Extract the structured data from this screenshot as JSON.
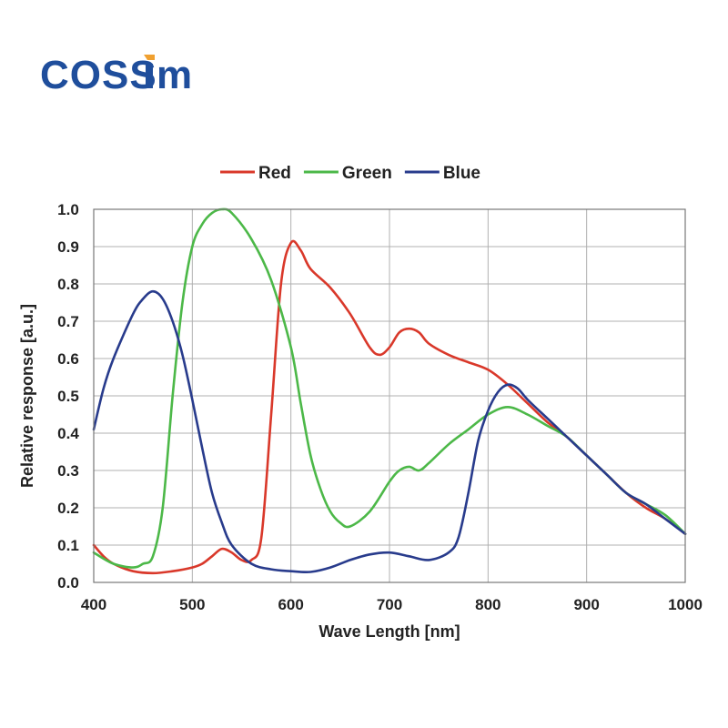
{
  "logo": {
    "text": "COSSiM",
    "color": "#1f4e9c",
    "accent": "#f0a030"
  },
  "chart_data": {
    "type": "line",
    "title": "",
    "xlabel": "Wave Length [nm]",
    "ylabel": "Relative response [a.u.]",
    "xlim": [
      400,
      1000
    ],
    "ylim": [
      0,
      1.0
    ],
    "xticks": [
      400,
      500,
      600,
      700,
      800,
      900,
      1000
    ],
    "xtick_labels": [
      "400",
      "500",
      "600",
      "700",
      "800",
      "900",
      "1000"
    ],
    "yticks": [
      0,
      0.1,
      0.2,
      0.3,
      0.4,
      0.5,
      0.6,
      0.7,
      0.8,
      0.9,
      1.0
    ],
    "ytick_labels": [
      "0.0",
      "0.1",
      "0.2",
      "0.3",
      "0.4",
      "0.5",
      "0.6",
      "0.7",
      "0.8",
      "0.9",
      "1.0"
    ],
    "grid": true,
    "legend": "top",
    "series": [
      {
        "name": "Red",
        "color": "#d9382a",
        "x": [
          400,
          410,
          420,
          440,
          460,
          480,
          500,
          510,
          520,
          530,
          540,
          550,
          560,
          570,
          580,
          590,
          600,
          610,
          620,
          640,
          660,
          680,
          690,
          700,
          710,
          720,
          730,
          740,
          760,
          780,
          800,
          820,
          840,
          860,
          880,
          900,
          920,
          940,
          960,
          980,
          1000
        ],
        "y": [
          0.1,
          0.07,
          0.05,
          0.03,
          0.025,
          0.03,
          0.04,
          0.05,
          0.07,
          0.09,
          0.08,
          0.06,
          0.06,
          0.12,
          0.45,
          0.8,
          0.91,
          0.89,
          0.84,
          0.79,
          0.72,
          0.63,
          0.61,
          0.63,
          0.67,
          0.68,
          0.67,
          0.64,
          0.61,
          0.59,
          0.57,
          0.53,
          0.48,
          0.43,
          0.39,
          0.34,
          0.29,
          0.24,
          0.2,
          0.17,
          0.13
        ]
      },
      {
        "name": "Green",
        "color": "#4cb848",
        "x": [
          400,
          420,
          440,
          450,
          460,
          470,
          480,
          490,
          500,
          510,
          520,
          530,
          540,
          560,
          580,
          600,
          610,
          620,
          630,
          640,
          650,
          660,
          680,
          700,
          710,
          720,
          730,
          740,
          760,
          780,
          800,
          820,
          840,
          860,
          880,
          900,
          920,
          940,
          960,
          980,
          1000
        ],
        "y": [
          0.08,
          0.05,
          0.04,
          0.05,
          0.07,
          0.2,
          0.5,
          0.75,
          0.9,
          0.96,
          0.99,
          1.0,
          0.99,
          0.92,
          0.81,
          0.63,
          0.48,
          0.34,
          0.25,
          0.19,
          0.16,
          0.15,
          0.19,
          0.27,
          0.3,
          0.31,
          0.3,
          0.32,
          0.37,
          0.41,
          0.45,
          0.47,
          0.45,
          0.42,
          0.39,
          0.34,
          0.29,
          0.24,
          0.21,
          0.18,
          0.13
        ]
      },
      {
        "name": "Blue",
        "color": "#283b8c",
        "x": [
          400,
          410,
          420,
          440,
          450,
          460,
          470,
          480,
          490,
          500,
          510,
          520,
          530,
          540,
          560,
          580,
          600,
          620,
          640,
          660,
          680,
          700,
          720,
          740,
          760,
          770,
          780,
          790,
          800,
          810,
          820,
          830,
          840,
          860,
          880,
          900,
          920,
          940,
          960,
          980,
          1000
        ],
        "y": [
          0.41,
          0.52,
          0.6,
          0.72,
          0.76,
          0.78,
          0.76,
          0.7,
          0.61,
          0.49,
          0.36,
          0.24,
          0.16,
          0.1,
          0.05,
          0.035,
          0.03,
          0.028,
          0.04,
          0.06,
          0.075,
          0.08,
          0.07,
          0.06,
          0.08,
          0.12,
          0.24,
          0.38,
          0.46,
          0.51,
          0.53,
          0.52,
          0.49,
          0.44,
          0.39,
          0.34,
          0.29,
          0.24,
          0.21,
          0.17,
          0.13
        ]
      }
    ]
  }
}
